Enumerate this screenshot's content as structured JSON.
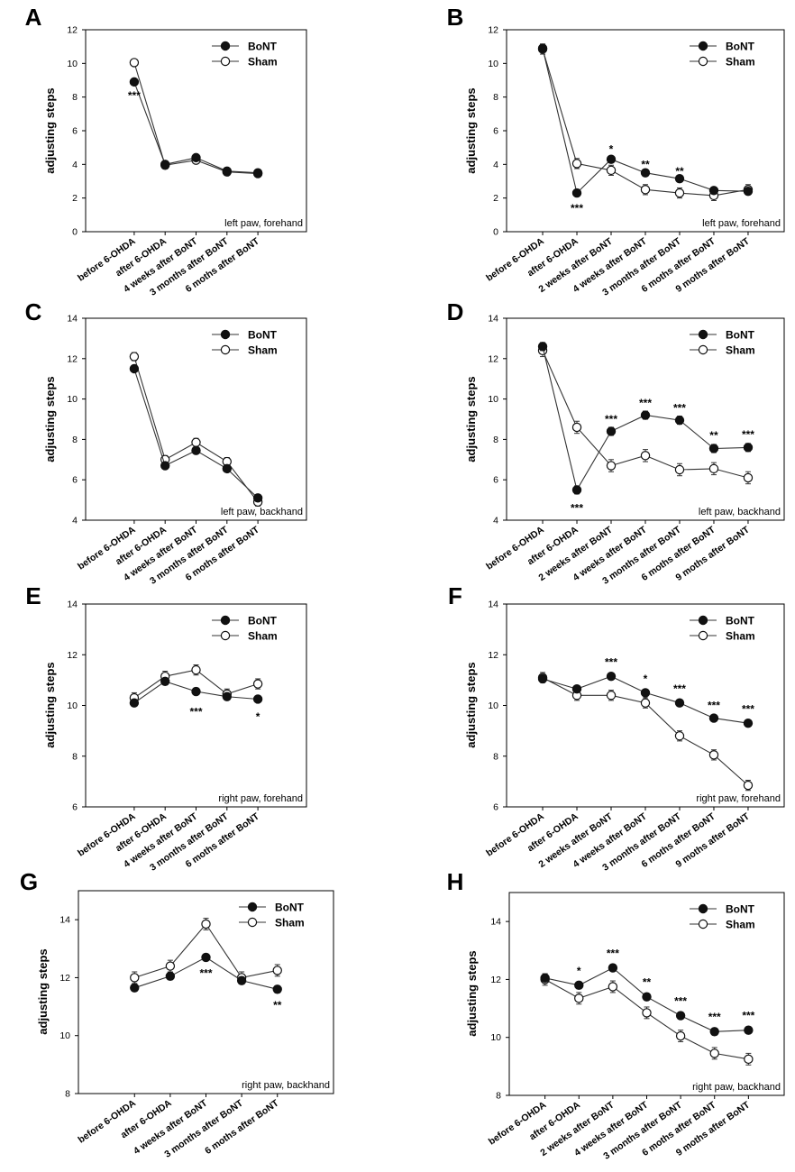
{
  "colors": {
    "axis": "#000000",
    "line": "#333333",
    "bont_fill": "#111111",
    "sham_fill": "#ffffff"
  },
  "chart_data": [
    {
      "panel": "A",
      "type": "line",
      "ylabel": "adjusting steps",
      "ylim": [
        0,
        12
      ],
      "yticks": [
        0,
        2,
        4,
        6,
        8,
        10,
        12
      ],
      "categories": [
        "before 6-OHDA",
        "after 6-OHDA",
        "4 weeks after BoNT",
        "3 months after BoNT",
        "6 moths after BoNT"
      ],
      "annotation": "left paw, forehand",
      "legend": {
        "position": "top-right",
        "entries": [
          "BoNT",
          "Sham"
        ]
      },
      "series": [
        {
          "name": "BoNT",
          "marker": "filled-circle",
          "values": [
            8.9,
            4.0,
            4.4,
            3.6,
            3.5
          ],
          "errors": [
            0.1,
            0.1,
            0.1,
            0.1,
            0.1
          ]
        },
        {
          "name": "Sham",
          "marker": "open-circle",
          "values": [
            10.05,
            3.95,
            4.25,
            3.55,
            3.45
          ],
          "errors": [
            0.1,
            0.1,
            0.1,
            0.1,
            0.1
          ]
        }
      ],
      "significance": [
        {
          "category": 0,
          "label": "***",
          "y": 8.1
        }
      ]
    },
    {
      "panel": "B",
      "type": "line",
      "ylabel": "adjusting steps",
      "ylim": [
        0,
        12
      ],
      "yticks": [
        0,
        2,
        4,
        6,
        8,
        10,
        12
      ],
      "categories": [
        "before 6-OHDA",
        "after 6-OHDA",
        "2 weeks after BoNT",
        "4 weeks after BoNT",
        "3 months after BoNT",
        "6 moths after BoNT",
        "9 moths after BoNT"
      ],
      "annotation": "left paw, forehand",
      "legend": {
        "position": "top-right",
        "entries": [
          "BoNT",
          "Sham"
        ]
      },
      "series": [
        {
          "name": "BoNT",
          "marker": "filled-circle",
          "values": [
            10.9,
            2.3,
            4.3,
            3.5,
            3.15,
            2.45,
            2.4
          ],
          "errors": [
            0.25,
            0.2,
            0.2,
            0.2,
            0.2,
            0.2,
            0.2
          ]
        },
        {
          "name": "Sham",
          "marker": "open-circle",
          "values": [
            10.85,
            4.05,
            3.65,
            2.5,
            2.3,
            2.15,
            2.5
          ],
          "errors": [
            0.3,
            0.3,
            0.3,
            0.3,
            0.3,
            0.3,
            0.3
          ]
        }
      ],
      "significance": [
        {
          "category": 1,
          "label": "***",
          "y": 1.4
        },
        {
          "category": 2,
          "label": "*",
          "y": 4.9
        },
        {
          "category": 3,
          "label": "**",
          "y": 4.0
        },
        {
          "category": 4,
          "label": "**",
          "y": 3.6
        }
      ]
    },
    {
      "panel": "C",
      "type": "line",
      "ylabel": "adjusting steps",
      "ylim": [
        4,
        14
      ],
      "yticks": [
        4,
        6,
        8,
        10,
        12,
        14
      ],
      "categories": [
        "before 6-OHDA",
        "after 6-OHDA",
        "4 weeks after BoNT",
        "3 months after BoNT",
        "6 moths after BoNT"
      ],
      "annotation": "left paw, backhand",
      "legend": {
        "position": "top-right",
        "entries": [
          "BoNT",
          "Sham"
        ]
      },
      "series": [
        {
          "name": "BoNT",
          "marker": "filled-circle",
          "values": [
            11.5,
            6.7,
            7.45,
            6.55,
            5.1
          ],
          "errors": [
            0.15,
            0.15,
            0.15,
            0.15,
            0.15
          ]
        },
        {
          "name": "Sham",
          "marker": "open-circle",
          "values": [
            12.1,
            7.0,
            7.85,
            6.9,
            4.9
          ],
          "errors": [
            0.2,
            0.2,
            0.2,
            0.2,
            0.2
          ]
        }
      ],
      "significance": []
    },
    {
      "panel": "D",
      "type": "line",
      "ylabel": "adjusting steps",
      "ylim": [
        4,
        14
      ],
      "yticks": [
        4,
        6,
        8,
        10,
        12,
        14
      ],
      "categories": [
        "before 6-OHDA",
        "after 6-OHDA",
        "2 weeks after BoNT",
        "4 weeks after BoNT",
        "3 months after BoNT",
        "6 moths after BoNT",
        "9 moths after BoNT"
      ],
      "annotation": "left paw, backhand",
      "legend": {
        "position": "top-right",
        "entries": [
          "BoNT",
          "Sham"
        ]
      },
      "series": [
        {
          "name": "BoNT",
          "marker": "filled-circle",
          "values": [
            12.6,
            5.5,
            8.4,
            9.2,
            8.95,
            7.55,
            7.6
          ],
          "errors": [
            0.2,
            0.2,
            0.2,
            0.2,
            0.2,
            0.2,
            0.2
          ]
        },
        {
          "name": "Sham",
          "marker": "open-circle",
          "values": [
            12.4,
            8.6,
            6.7,
            7.2,
            6.5,
            6.55,
            6.1
          ],
          "errors": [
            0.3,
            0.3,
            0.3,
            0.3,
            0.3,
            0.3,
            0.3
          ]
        }
      ],
      "significance": [
        {
          "category": 1,
          "label": "***",
          "y": 4.6
        },
        {
          "category": 2,
          "label": "***",
          "y": 9.0
        },
        {
          "category": 3,
          "label": "***",
          "y": 9.8
        },
        {
          "category": 4,
          "label": "***",
          "y": 9.55
        },
        {
          "category": 5,
          "label": "**",
          "y": 8.2
        },
        {
          "category": 6,
          "label": "***",
          "y": 8.25
        }
      ]
    },
    {
      "panel": "E",
      "type": "line",
      "ylabel": "adjusting steps",
      "ylim": [
        6,
        14
      ],
      "yticks": [
        6,
        8,
        10,
        12,
        14
      ],
      "categories": [
        "before 6-OHDA",
        "after 6-OHDA",
        "4 weeks after BoNT",
        "3 months after BoNT",
        "6 moths after BoNT"
      ],
      "annotation": "right paw, forehand",
      "legend": {
        "position": "top-right",
        "entries": [
          "BoNT",
          "Sham"
        ]
      },
      "series": [
        {
          "name": "BoNT",
          "marker": "filled-circle",
          "values": [
            10.1,
            10.95,
            10.55,
            10.35,
            10.25
          ],
          "errors": [
            0.12,
            0.12,
            0.12,
            0.12,
            0.12
          ]
        },
        {
          "name": "Sham",
          "marker": "open-circle",
          "values": [
            10.3,
            11.15,
            11.4,
            10.45,
            10.85
          ],
          "errors": [
            0.2,
            0.2,
            0.2,
            0.2,
            0.2
          ]
        }
      ],
      "significance": [
        {
          "category": 2,
          "label": "***",
          "y": 9.75
        },
        {
          "category": 4,
          "label": "*",
          "y": 9.55
        }
      ]
    },
    {
      "panel": "F",
      "type": "line",
      "ylabel": "adjusting steps",
      "ylim": [
        6,
        14
      ],
      "yticks": [
        6,
        8,
        10,
        12,
        14
      ],
      "categories": [
        "before 6-OHDA",
        "after 6-OHDA",
        "2 weeks after BoNT",
        "4 weeks after BoNT",
        "3 months after BoNT",
        "6 moths after BoNT",
        "9 moths after BoNT"
      ],
      "annotation": "right paw, forehand",
      "legend": {
        "position": "top-right",
        "entries": [
          "BoNT",
          "Sham"
        ]
      },
      "series": [
        {
          "name": "BoNT",
          "marker": "filled-circle",
          "values": [
            11.05,
            10.65,
            11.15,
            10.5,
            10.1,
            9.5,
            9.3
          ],
          "errors": [
            0.12,
            0.12,
            0.12,
            0.12,
            0.12,
            0.12,
            0.12
          ]
        },
        {
          "name": "Sham",
          "marker": "open-circle",
          "values": [
            11.1,
            10.4,
            10.4,
            10.1,
            8.8,
            8.05,
            6.85
          ],
          "errors": [
            0.2,
            0.2,
            0.2,
            0.2,
            0.2,
            0.2,
            0.2
          ]
        }
      ],
      "significance": [
        {
          "category": 2,
          "label": "***",
          "y": 11.7
        },
        {
          "category": 3,
          "label": "*",
          "y": 11.05
        },
        {
          "category": 4,
          "label": "***",
          "y": 10.65
        },
        {
          "category": 5,
          "label": "***",
          "y": 10.0
        },
        {
          "category": 6,
          "label": "***",
          "y": 9.85
        }
      ]
    },
    {
      "panel": "G",
      "type": "line",
      "ylabel": "adjusting steps",
      "ylim": [
        8,
        15
      ],
      "yticks": [
        8,
        10,
        12,
        14
      ],
      "categories": [
        "before 6-OHDA",
        "after 6-OHDA",
        "4 weeks after BoNT",
        "3 months after BoNT",
        "6 moths after BoNT"
      ],
      "annotation": "right paw, backhand",
      "legend": {
        "position": "top-right",
        "entries": [
          "BoNT",
          "Sham"
        ]
      },
      "series": [
        {
          "name": "BoNT",
          "marker": "filled-circle",
          "values": [
            11.65,
            12.05,
            12.7,
            11.9,
            11.6
          ],
          "errors": [
            0.12,
            0.12,
            0.12,
            0.12,
            0.12
          ]
        },
        {
          "name": "Sham",
          "marker": "open-circle",
          "values": [
            12.0,
            12.4,
            13.85,
            12.0,
            12.25
          ],
          "errors": [
            0.2,
            0.2,
            0.2,
            0.2,
            0.2
          ]
        }
      ],
      "significance": [
        {
          "category": 2,
          "label": "***",
          "y": 12.15
        },
        {
          "category": 4,
          "label": "**",
          "y": 11.05
        }
      ]
    },
    {
      "panel": "H",
      "type": "line",
      "ylabel": "adjusting steps",
      "ylim": [
        8,
        15
      ],
      "yticks": [
        8,
        10,
        12,
        14
      ],
      "categories": [
        "before 6-OHDA",
        "after 6-OHDA",
        "2 weeks after BoNT",
        "4 weeks after BoNT",
        "3 months after BoNT",
        "6 moths after BoNT",
        "9 moths after BoNT"
      ],
      "annotation": "right paw, backhand",
      "legend": {
        "position": "top-right",
        "entries": [
          "BoNT",
          "Sham"
        ]
      },
      "series": [
        {
          "name": "BoNT",
          "marker": "filled-circle",
          "values": [
            12.05,
            11.8,
            12.4,
            11.4,
            10.75,
            10.2,
            10.25
          ],
          "errors": [
            0.12,
            0.12,
            0.12,
            0.12,
            0.12,
            0.12,
            0.12
          ]
        },
        {
          "name": "Sham",
          "marker": "open-circle",
          "values": [
            12.0,
            11.35,
            11.75,
            10.85,
            10.05,
            9.45,
            9.25
          ],
          "errors": [
            0.2,
            0.2,
            0.2,
            0.2,
            0.2,
            0.2,
            0.2
          ]
        }
      ],
      "significance": [
        {
          "category": 1,
          "label": "*",
          "y": 12.3
        },
        {
          "category": 2,
          "label": "***",
          "y": 12.9
        },
        {
          "category": 3,
          "label": "**",
          "y": 11.9
        },
        {
          "category": 4,
          "label": "***",
          "y": 11.25
        },
        {
          "category": 5,
          "label": "***",
          "y": 10.7
        },
        {
          "category": 6,
          "label": "***",
          "y": 10.75
        }
      ]
    }
  ]
}
